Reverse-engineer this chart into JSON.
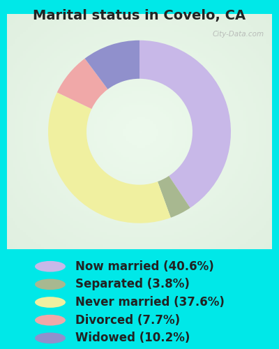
{
  "title": "Marital status in Covelo, CA",
  "slices": [
    {
      "label": "Now married (40.6%)",
      "value": 40.6,
      "color": "#c8b8e8"
    },
    {
      "label": "Separated (3.8%)",
      "value": 3.8,
      "color": "#a8b890"
    },
    {
      "label": "Never married (37.6%)",
      "value": 37.6,
      "color": "#f0f0a0"
    },
    {
      "label": "Divorced (7.7%)",
      "value": 7.7,
      "color": "#f0a8a8"
    },
    {
      "label": "Widowed (10.2%)",
      "value": 10.2,
      "color": "#9090cc"
    }
  ],
  "bg_outer": "#00e8e8",
  "bg_chart": "#c8e8d8",
  "title_fontsize": 14,
  "legend_fontsize": 12,
  "watermark": "City-Data.com",
  "title_color": "#222222",
  "legend_text_color": "#222222"
}
